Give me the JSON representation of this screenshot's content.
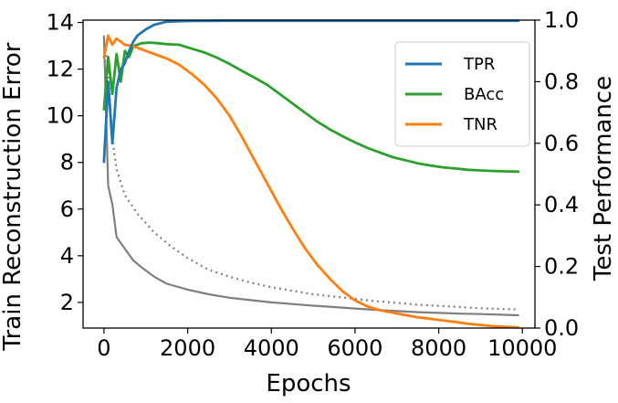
{
  "chart_data": {
    "type": "line",
    "title": "",
    "xlabel": "Epochs",
    "ylabel_left": "Train Reconstruction Error",
    "ylabel_right": "Test Performance",
    "xlim": [
      -500,
      10300
    ],
    "ylim_left": [
      0.9,
      14.1
    ],
    "ylim_right": [
      0.0,
      1.0
    ],
    "x_ticks": [
      0,
      2000,
      4000,
      6000,
      8000,
      10000
    ],
    "y_ticks_left": [
      2,
      4,
      6,
      8,
      10,
      12,
      14
    ],
    "y_ticks_right": [
      0.0,
      0.2,
      0.4,
      0.6,
      0.8,
      1.0
    ],
    "grid": false,
    "legend_position": "upper-right",
    "series": [
      {
        "name": "TPR",
        "axis": "right",
        "color": "#1f77b4",
        "style": "solid",
        "points": [
          [
            0,
            0.54
          ],
          [
            100,
            0.8
          ],
          [
            200,
            0.6
          ],
          [
            300,
            0.78
          ],
          [
            400,
            0.84
          ],
          [
            500,
            0.86
          ],
          [
            600,
            0.9
          ],
          [
            700,
            0.93
          ],
          [
            800,
            0.95
          ],
          [
            1000,
            0.97
          ],
          [
            1200,
            0.985
          ],
          [
            1500,
            0.995
          ],
          [
            2000,
            0.997
          ],
          [
            3000,
            0.998
          ],
          [
            5000,
            0.998
          ],
          [
            7000,
            0.998
          ],
          [
            9000,
            0.998
          ],
          [
            9900,
            0.998
          ]
        ]
      },
      {
        "name": "BAcc",
        "axis": "right",
        "color": "#2ca02c",
        "style": "solid",
        "points": [
          [
            0,
            0.71
          ],
          [
            100,
            0.88
          ],
          [
            200,
            0.76
          ],
          [
            300,
            0.89
          ],
          [
            400,
            0.8
          ],
          [
            500,
            0.9
          ],
          [
            600,
            0.88
          ],
          [
            700,
            0.915
          ],
          [
            900,
            0.925
          ],
          [
            1100,
            0.927
          ],
          [
            1300,
            0.925
          ],
          [
            1500,
            0.922
          ],
          [
            1800,
            0.92
          ],
          [
            2100,
            0.907
          ],
          [
            2400,
            0.895
          ],
          [
            2700,
            0.878
          ],
          [
            3000,
            0.858
          ],
          [
            3300,
            0.835
          ],
          [
            3600,
            0.813
          ],
          [
            3900,
            0.79
          ],
          [
            4200,
            0.76
          ],
          [
            4500,
            0.73
          ],
          [
            4800,
            0.7
          ],
          [
            5100,
            0.67
          ],
          [
            5400,
            0.645
          ],
          [
            5700,
            0.623
          ],
          [
            6000,
            0.603
          ],
          [
            6300,
            0.585
          ],
          [
            6600,
            0.57
          ],
          [
            6900,
            0.555
          ],
          [
            7200,
            0.545
          ],
          [
            7500,
            0.535
          ],
          [
            7800,
            0.528
          ],
          [
            8100,
            0.522
          ],
          [
            8400,
            0.518
          ],
          [
            8700,
            0.514
          ],
          [
            9000,
            0.512
          ],
          [
            9300,
            0.51
          ],
          [
            9600,
            0.509
          ],
          [
            9900,
            0.508
          ]
        ]
      },
      {
        "name": "TNR",
        "axis": "right",
        "color": "#ff7f0e",
        "style": "solid",
        "points": [
          [
            0,
            0.88
          ],
          [
            100,
            0.95
          ],
          [
            200,
            0.92
          ],
          [
            300,
            0.94
          ],
          [
            500,
            0.92
          ],
          [
            700,
            0.915
          ],
          [
            900,
            0.905
          ],
          [
            1200,
            0.89
          ],
          [
            1500,
            0.875
          ],
          [
            1800,
            0.855
          ],
          [
            2100,
            0.825
          ],
          [
            2400,
            0.79
          ],
          [
            2700,
            0.745
          ],
          [
            3000,
            0.69
          ],
          [
            3300,
            0.62
          ],
          [
            3600,
            0.545
          ],
          [
            3900,
            0.47
          ],
          [
            4200,
            0.395
          ],
          [
            4500,
            0.325
          ],
          [
            4800,
            0.26
          ],
          [
            5100,
            0.205
          ],
          [
            5400,
            0.16
          ],
          [
            5700,
            0.12
          ],
          [
            6000,
            0.09
          ],
          [
            6300,
            0.07
          ],
          [
            6600,
            0.058
          ],
          [
            6900,
            0.05
          ],
          [
            7200,
            0.042
          ],
          [
            7500,
            0.035
          ],
          [
            7800,
            0.03
          ],
          [
            8100,
            0.025
          ],
          [
            8400,
            0.02
          ],
          [
            8700,
            0.014
          ],
          [
            9000,
            0.01
          ],
          [
            9300,
            0.006
          ],
          [
            9600,
            0.004
          ],
          [
            9900,
            0.002
          ]
        ]
      },
      {
        "name": "",
        "axis": "left",
        "color": "#7f7f7f",
        "style": "solid",
        "points": [
          [
            0,
            13.4
          ],
          [
            100,
            7.0
          ],
          [
            200,
            6.2
          ],
          [
            300,
            4.8
          ],
          [
            500,
            4.3
          ],
          [
            700,
            3.8
          ],
          [
            900,
            3.5
          ],
          [
            1200,
            3.1
          ],
          [
            1500,
            2.8
          ],
          [
            2000,
            2.55
          ],
          [
            2500,
            2.35
          ],
          [
            3000,
            2.2
          ],
          [
            3500,
            2.1
          ],
          [
            4000,
            2.0
          ],
          [
            4500,
            1.93
          ],
          [
            5000,
            1.86
          ],
          [
            5500,
            1.8
          ],
          [
            6000,
            1.74
          ],
          [
            6500,
            1.68
          ],
          [
            7000,
            1.63
          ],
          [
            7500,
            1.58
          ],
          [
            8000,
            1.55
          ],
          [
            8500,
            1.52
          ],
          [
            9000,
            1.5
          ],
          [
            9500,
            1.47
          ],
          [
            9900,
            1.45
          ]
        ]
      },
      {
        "name": "",
        "axis": "left",
        "color": "#7f7f7f",
        "style": "dotted",
        "points": [
          [
            0,
            13.3
          ],
          [
            100,
            12.0
          ],
          [
            200,
            9.0
          ],
          [
            300,
            7.7
          ],
          [
            500,
            6.6
          ],
          [
            800,
            5.8
          ],
          [
            1200,
            5.0
          ],
          [
            1600,
            4.4
          ],
          [
            2000,
            3.9
          ],
          [
            2500,
            3.4
          ],
          [
            3000,
            3.1
          ],
          [
            3500,
            2.85
          ],
          [
            4000,
            2.65
          ],
          [
            4500,
            2.5
          ],
          [
            5000,
            2.35
          ],
          [
            5500,
            2.25
          ],
          [
            6000,
            2.15
          ],
          [
            6500,
            2.05
          ],
          [
            7000,
            1.98
          ],
          [
            7500,
            1.9
          ],
          [
            8000,
            1.85
          ],
          [
            8500,
            1.8
          ],
          [
            9000,
            1.75
          ],
          [
            9500,
            1.72
          ],
          [
            9900,
            1.7
          ]
        ]
      }
    ]
  }
}
